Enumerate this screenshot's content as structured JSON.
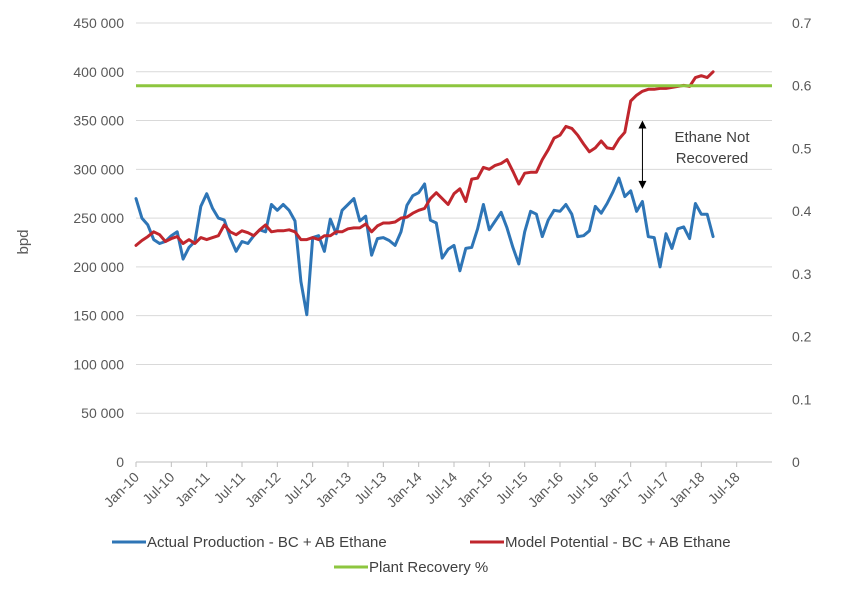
{
  "chart_data": {
    "type": "line",
    "y_left_label": "bpd",
    "y_left_range": [
      0,
      450000
    ],
    "y_left_ticks": [
      "0",
      "50 000",
      "100 000",
      "150 000",
      "200 000",
      "250 000",
      "300 000",
      "350 000",
      "400 000",
      "450 000"
    ],
    "y_right_range": [
      0,
      0.7
    ],
    "y_right_ticks": [
      "0",
      "0.1",
      "0.2",
      "0.3",
      "0.4",
      "0.5",
      "0.6",
      "0.7"
    ],
    "x_tick_labels": [
      "Jan-10",
      "Jul-10",
      "Jan-11",
      "Jul-11",
      "Jan-12",
      "Jul-12",
      "Jan-13",
      "Jul-13",
      "Jan-14",
      "Jul-14",
      "Jan-15",
      "Jul-15",
      "Jan-16",
      "Jul-16",
      "Jan-17",
      "Jul-17",
      "Jan-18",
      "Jul-18"
    ],
    "x_start": "Jan-10",
    "grid": "horizontal",
    "legend_position": "bottom",
    "annotation": {
      "lines": [
        "Ethane Not",
        "Recovered"
      ],
      "arrow_from": 350000,
      "arrow_to": 280000,
      "at": "Mar-17"
    },
    "series": [
      {
        "name": "Actual Production - BC + AB Ethane",
        "axis": "left",
        "color": "#2E75B6",
        "values": [
          270000,
          250000,
          243000,
          228000,
          224000,
          226000,
          232000,
          236000,
          208000,
          220000,
          226000,
          262000,
          275000,
          260000,
          250000,
          248000,
          230000,
          216000,
          226000,
          224000,
          232000,
          238000,
          236000,
          264000,
          258000,
          264000,
          258000,
          247000,
          185000,
          151000,
          230000,
          232000,
          216000,
          249000,
          234000,
          258000,
          264000,
          270000,
          247000,
          252000,
          212000,
          229000,
          230000,
          227000,
          222000,
          236000,
          263000,
          273000,
          276000,
          285000,
          248000,
          245000,
          209000,
          218000,
          222000,
          196000,
          219000,
          220000,
          239000,
          264000,
          238000,
          247000,
          256000,
          240000,
          220000,
          203000,
          236000,
          257000,
          254000,
          231000,
          248000,
          258000,
          257000,
          264000,
          254000,
          231000,
          232000,
          237000,
          262000,
          255000,
          265000,
          277000,
          291000,
          272000,
          278000,
          257000,
          267000,
          231000,
          230000,
          200000,
          234000,
          219000,
          239000,
          241000,
          229000,
          265000,
          254000,
          254000,
          231000
        ]
      },
      {
        "name": "Model Potential - BC + AB Ethane",
        "axis": "left",
        "color": "#C0262D",
        "values": [
          222000,
          227000,
          231000,
          236000,
          233000,
          226000,
          229000,
          231000,
          224000,
          228000,
          224000,
          230000,
          228000,
          230000,
          232000,
          243000,
          236000,
          233000,
          237000,
          235000,
          232000,
          238000,
          243000,
          236000,
          237000,
          237000,
          238000,
          236000,
          228000,
          228000,
          230000,
          228000,
          232000,
          232000,
          236000,
          236000,
          239000,
          240000,
          240000,
          244000,
          236000,
          242000,
          245000,
          245000,
          246000,
          250000,
          251000,
          255000,
          258000,
          260000,
          270000,
          276000,
          270000,
          264000,
          275000,
          280000,
          267000,
          290000,
          291000,
          302000,
          300000,
          304000,
          306000,
          310000,
          298000,
          285000,
          296000,
          297000,
          297000,
          310000,
          320000,
          332000,
          335000,
          344000,
          342000,
          335000,
          326000,
          318000,
          322000,
          329000,
          322000,
          321000,
          331000,
          338000,
          370000,
          376000,
          380000,
          382000,
          382000,
          383000,
          383000,
          384000,
          385000,
          386000,
          385000,
          394000,
          396000,
          394000,
          400000
        ]
      },
      {
        "name": "Plant Recovery %",
        "axis": "right",
        "color": "#8DC63F",
        "constant": 0.6
      }
    ]
  }
}
